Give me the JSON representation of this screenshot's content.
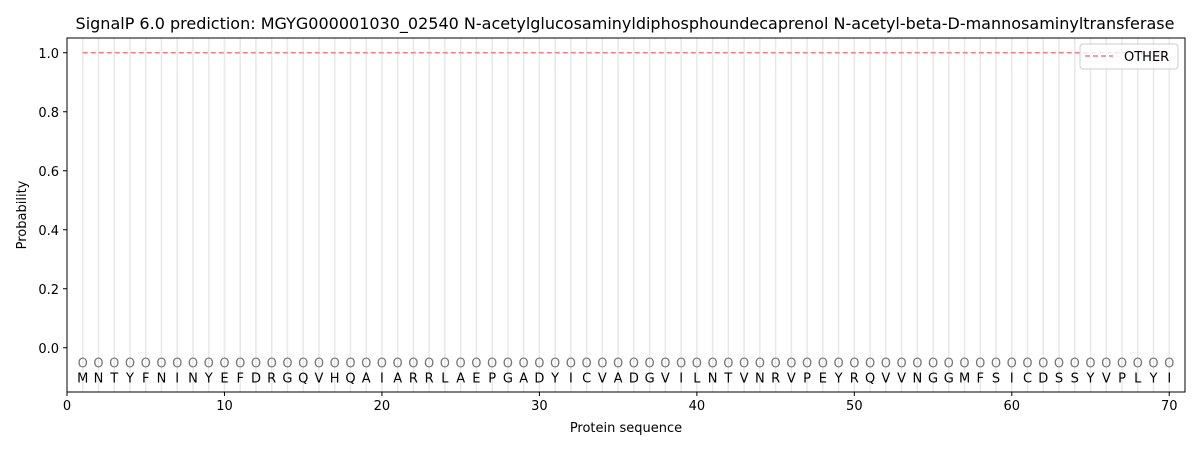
{
  "chart_data": {
    "type": "line",
    "title": "SignalP 6.0 prediction: MGYG000001030_02540 N-acetylglucosaminyldiphosphoundecaprenol N-acetyl-beta-D-mannosaminyltransferase",
    "xlabel": "Protein sequence",
    "ylabel": "Probability",
    "xlim": [
      0,
      71
    ],
    "ylim": [
      -0.15,
      1.05
    ],
    "xticks": [
      0,
      10,
      20,
      30,
      40,
      50,
      60,
      70
    ],
    "yticks": [
      "0.0",
      "0.2",
      "0.4",
      "0.6",
      "0.8",
      "1.0"
    ],
    "grid": false,
    "legend_position": "top-right",
    "sequence": [
      "M",
      "N",
      "T",
      "Y",
      "F",
      "N",
      "I",
      "N",
      "Y",
      "E",
      "F",
      "D",
      "R",
      "G",
      "Q",
      "V",
      "H",
      "Q",
      "A",
      "I",
      "A",
      "R",
      "R",
      "L",
      "A",
      "E",
      "P",
      "G",
      "A",
      "D",
      "Y",
      "I",
      "C",
      "V",
      "A",
      "D",
      "G",
      "V",
      "I",
      "L",
      "N",
      "T",
      "V",
      "N",
      "R",
      "V",
      "P",
      "E",
      "Y",
      "R",
      "Q",
      "V",
      "V",
      "N",
      "G",
      "G",
      "M",
      "F",
      "S",
      "I",
      "C",
      "D",
      "S",
      "S",
      "Y",
      "V",
      "P",
      "L",
      "Y",
      "I"
    ],
    "position_labels": "O",
    "series": [
      {
        "name": "OTHER",
        "color": "#f08080",
        "style": "dashed",
        "x_start": 1,
        "x_end": 70,
        "value": 1.0
      }
    ]
  }
}
